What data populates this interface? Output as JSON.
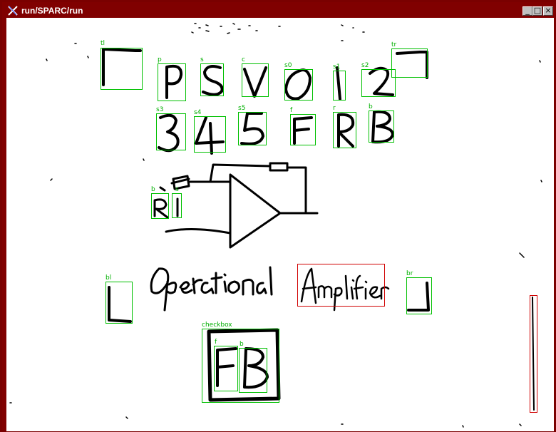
{
  "window": {
    "title": "run/SPARC/run",
    "buttons": [
      "minimize",
      "maximize",
      "close"
    ]
  },
  "colors": {
    "frame": "#800000",
    "canvas": "#ffffff",
    "ink": "#000000",
    "detection": "#00c000",
    "highlight": "#d00000"
  },
  "detections": [
    {
      "id": "tl",
      "label": "tl"
    },
    {
      "id": "p",
      "label": "p"
    },
    {
      "id": "s",
      "label": "s"
    },
    {
      "id": "c",
      "label": "c"
    },
    {
      "id": "s0",
      "label": "s0"
    },
    {
      "id": "s1",
      "label": "s1"
    },
    {
      "id": "s2",
      "label": "s2"
    },
    {
      "id": "tr",
      "label": "tr"
    },
    {
      "id": "s3",
      "label": "s3"
    },
    {
      "id": "s4",
      "label": "s4"
    },
    {
      "id": "s5",
      "label": "s5"
    },
    {
      "id": "f",
      "label": "f"
    },
    {
      "id": "r",
      "label": "r"
    },
    {
      "id": "b",
      "label": "b"
    },
    {
      "id": "b2",
      "label": "b"
    },
    {
      "id": "s6",
      "label": "s"
    },
    {
      "id": "bl",
      "label": "bl"
    },
    {
      "id": "br",
      "label": "br"
    },
    {
      "id": "checkbox",
      "label": "checkbox"
    },
    {
      "id": "f2",
      "label": "f"
    },
    {
      "id": "b3",
      "label": "b"
    }
  ]
}
